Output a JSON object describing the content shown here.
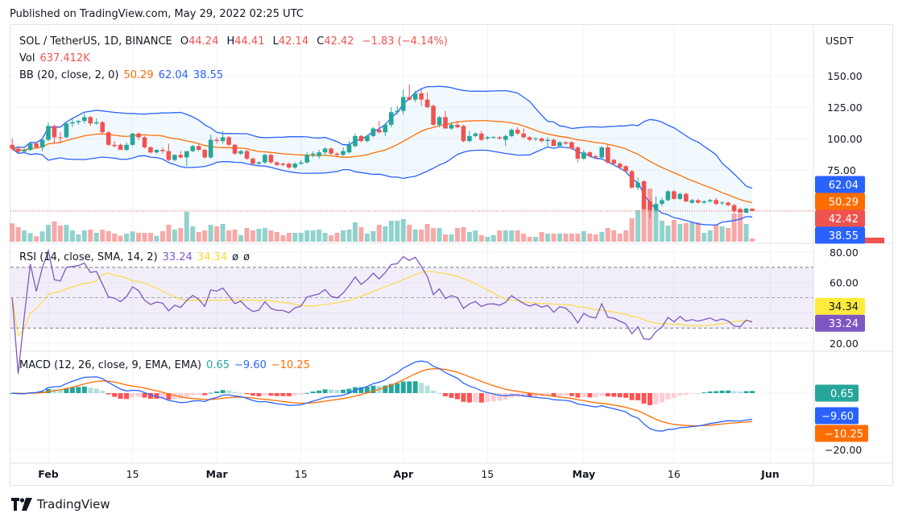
{
  "header": {
    "published": "Published on TradingView.com, May 29, 2022 02:25 UTC"
  },
  "footer": {
    "brand": "TradingView"
  },
  "legend": {
    "symbol": "SOL / TetherUS, 1D, BINANCE",
    "open_label": "O",
    "open": "44.24",
    "high_label": "H",
    "high": "44.41",
    "low_label": "L",
    "low": "42.14",
    "close_label": "C",
    "close": "42.42",
    "change": "−1.83 (−4.14%)",
    "vol_label": "Vol",
    "vol": "637.412K",
    "bb_label": "BB (20, close, 2, 0)",
    "bb_basis": "50.29",
    "bb_upper": "62.04",
    "bb_lower": "38.55",
    "rsi_label": "RSI (14, close, SMA, 14, 2)",
    "rsi": "33.24",
    "rsi_sma": "34.34",
    "rsi_na1": "ø",
    "rsi_na2": "ø",
    "macd_label": "MACD (12, 26, close, 9, EMA, EMA)",
    "macd_hist": "0.65",
    "macd": "−9.60",
    "macd_signal": "−10.25"
  },
  "colors": {
    "up": "#26a69a",
    "down": "#ef5350",
    "bb_band": "#2962ff",
    "bb_basis": "#ff6d00",
    "rsi": "#7e57c2",
    "rsi_sma": "#fdd835",
    "macd": "#2962ff",
    "signal": "#ff6d00",
    "hist_up_strong": "#26a69a",
    "hist_up_weak": "#b2dfdb",
    "hist_down_weak": "#ffcdd2",
    "hist_down_strong": "#ff5252"
  },
  "chart_data": {
    "type": "candlestick",
    "currency": "USDT",
    "first_date": "2022-01-26",
    "x_ticks": [
      {
        "label": "Feb",
        "date": "2022-02-01",
        "bold": true
      },
      {
        "label": "15",
        "date": "2022-02-15",
        "bold": false
      },
      {
        "label": "Mar",
        "date": "2022-03-01",
        "bold": true
      },
      {
        "label": "15",
        "date": "2022-03-15",
        "bold": false
      },
      {
        "label": "Apr",
        "date": "2022-04-01",
        "bold": true
      },
      {
        "label": "15",
        "date": "2022-04-15",
        "bold": false
      },
      {
        "label": "May",
        "date": "2022-05-01",
        "bold": true
      },
      {
        "label": "16",
        "date": "2022-05-16",
        "bold": false
      },
      {
        "label": "Jun",
        "date": "2022-06-01",
        "bold": true
      }
    ],
    "price_axis": {
      "ticks": [
        "150.00",
        "125.00",
        "100.00",
        "75.00"
      ],
      "tick_values": [
        150,
        125,
        100,
        75
      ]
    },
    "price_tags": [
      {
        "text": "62.04",
        "value": 62.04,
        "color": "#2962ff"
      },
      {
        "text": "50.29",
        "value": 50.29,
        "color": "#ff6d00"
      },
      {
        "text": "42.42",
        "value": 42.42,
        "color": "#ef5350"
      },
      {
        "text": "38.55",
        "value": 38.55,
        "color": "#2962ff"
      }
    ],
    "rsi_axis": {
      "ticks": [
        "80.00",
        "60.00",
        "20.00"
      ],
      "tick_values": [
        80,
        60,
        20
      ],
      "bands": [
        70,
        50,
        30
      ]
    },
    "rsi_tags": [
      {
        "text": "34.34",
        "value": 34.34,
        "color": "#ffeb3b",
        "text_color": "#131722"
      },
      {
        "text": "33.24",
        "value": 33.24,
        "color": "#7e57c2",
        "text_color": "#ffffff"
      }
    ],
    "macd_axis": {
      "ticks": [
        "−20.00"
      ],
      "tick_values": [
        -20
      ]
    },
    "macd_tags": [
      {
        "text": "0.65",
        "value": 0.65,
        "color": "#26a69a"
      },
      {
        "text": "−9.60",
        "value": -9.6,
        "color": "#2962ff"
      },
      {
        "text": "−10.25",
        "value": -10.25,
        "color": "#ff6d00"
      }
    ],
    "ohlc_columns": [
      "open",
      "high",
      "low",
      "close"
    ],
    "ohlc": [
      [
        95,
        100,
        90.5,
        92
      ],
      [
        92,
        94,
        88.5,
        89.5
      ],
      [
        89.5,
        92,
        88.5,
        91
      ],
      [
        91,
        97.5,
        90,
        96
      ],
      [
        96,
        97.5,
        92,
        93
      ],
      [
        93,
        101,
        90,
        99
      ],
      [
        99,
        113,
        98,
        110
      ],
      [
        110,
        111,
        96,
        101
      ],
      [
        101,
        105,
        96,
        100.5
      ],
      [
        101,
        113,
        100,
        112
      ],
      [
        112,
        116,
        109,
        113
      ],
      [
        113,
        115,
        111,
        114
      ],
      [
        114,
        120,
        112,
        117
      ],
      [
        117,
        118,
        110,
        112
      ],
      [
        112,
        116,
        111,
        113
      ],
      [
        113,
        114,
        104,
        105
      ],
      [
        105,
        106,
        94,
        95
      ],
      [
        95,
        98,
        93,
        94
      ],
      [
        95,
        96,
        91,
        91
      ],
      [
        91,
        97,
        90,
        95
      ],
      [
        95,
        104.5,
        94,
        104
      ],
      [
        104,
        105,
        99,
        101
      ],
      [
        101,
        102,
        92,
        93
      ],
      [
        93,
        94,
        88,
        89
      ],
      [
        89,
        91.5,
        88,
        91
      ],
      [
        91,
        93,
        88,
        90
      ],
      [
        90,
        96,
        82,
        83
      ],
      [
        83,
        87.5,
        82,
        87
      ],
      [
        87,
        90,
        84,
        85
      ],
      [
        85,
        90,
        78,
        90
      ],
      [
        90,
        95,
        89,
        94
      ],
      [
        94,
        96,
        90,
        91
      ],
      [
        91,
        92,
        84,
        85
      ],
      [
        85,
        103,
        84,
        99
      ],
      [
        99,
        101,
        96,
        98
      ],
      [
        98,
        106,
        96,
        101
      ],
      [
        101,
        102,
        94,
        95
      ],
      [
        95,
        96,
        87,
        88
      ],
      [
        88,
        91,
        87,
        90
      ],
      [
        90,
        91,
        83,
        84
      ],
      [
        84,
        85,
        79,
        80
      ],
      [
        80,
        82,
        79,
        81
      ],
      [
        81,
        88,
        80,
        87
      ],
      [
        87,
        88,
        80,
        81
      ],
      [
        81,
        82,
        78,
        79
      ],
      [
        80,
        81,
        78,
        79
      ],
      [
        80,
        81,
        76,
        77
      ],
      [
        77,
        81,
        76,
        80
      ],
      [
        80,
        83,
        79,
        81
      ],
      [
        81,
        89,
        80,
        87
      ],
      [
        87,
        90,
        85,
        88
      ],
      [
        86,
        91,
        84,
        89
      ],
      [
        89,
        93,
        87,
        92
      ],
      [
        92,
        93,
        87,
        88
      ],
      [
        88,
        89,
        86,
        87
      ],
      [
        87,
        93,
        86,
        90
      ],
      [
        89,
        98,
        88,
        95
      ],
      [
        94,
        104,
        93,
        102
      ],
      [
        102,
        103,
        97,
        98
      ],
      [
        98,
        103,
        97,
        102
      ],
      [
        102,
        109,
        101,
        108
      ],
      [
        107,
        114,
        104,
        105
      ],
      [
        105,
        112,
        102,
        111
      ],
      [
        111,
        125,
        109,
        121
      ],
      [
        121,
        126,
        119,
        122
      ],
      [
        122,
        139,
        119,
        133
      ],
      [
        133,
        143,
        130,
        131
      ],
      [
        131,
        138,
        129,
        136
      ],
      [
        136,
        139,
        126,
        131
      ],
      [
        131,
        137,
        124,
        125
      ],
      [
        126,
        127,
        110,
        111
      ],
      [
        111,
        118,
        109,
        117
      ],
      [
        117,
        122,
        108,
        108
      ],
      [
        108,
        113,
        107,
        111
      ],
      [
        111,
        114,
        108,
        109
      ],
      [
        110,
        111,
        97,
        98
      ],
      [
        98,
        106,
        97,
        102
      ],
      [
        102,
        105,
        101,
        104
      ],
      [
        104,
        106,
        98,
        99
      ],
      [
        100,
        102,
        99,
        101
      ],
      [
        101,
        102,
        100,
        101.2
      ],
      [
        101,
        102,
        99,
        100
      ],
      [
        99,
        103,
        94,
        102
      ],
      [
        102,
        108,
        101,
        107
      ],
      [
        107,
        109,
        103,
        104
      ],
      [
        104,
        108,
        100,
        101
      ],
      [
        101,
        102,
        98,
        99
      ],
      [
        100,
        101,
        98,
        100.2
      ],
      [
        100,
        101,
        97,
        98
      ],
      [
        98,
        101,
        94,
        99
      ],
      [
        99,
        100,
        94,
        94
      ],
      [
        94,
        98,
        93,
        97
      ],
      [
        97,
        98,
        95,
        96
      ],
      [
        97,
        98,
        91,
        92
      ],
      [
        93,
        94,
        81,
        84
      ],
      [
        84,
        91,
        83,
        89
      ],
      [
        89,
        90,
        85,
        86
      ],
      [
        86,
        87,
        84,
        85
      ],
      [
        85,
        94,
        84,
        93
      ],
      [
        93,
        96,
        80,
        81
      ],
      [
        83,
        84,
        79,
        80
      ],
      [
        80,
        81,
        76,
        77
      ],
      [
        78,
        79,
        73,
        74
      ],
      [
        74,
        75,
        60,
        61
      ],
      [
        61,
        69,
        59,
        65
      ],
      [
        66,
        67,
        43,
        44
      ],
      [
        50,
        52,
        37,
        43
      ],
      [
        43,
        54,
        41,
        48
      ],
      [
        48,
        53,
        46,
        51
      ],
      [
        51,
        59,
        50,
        58
      ],
      [
        58,
        59,
        51,
        52
      ],
      [
        52,
        57,
        51,
        56
      ],
      [
        56,
        57,
        49,
        50
      ],
      [
        49,
        52,
        48,
        51
      ],
      [
        51,
        52,
        48,
        49
      ],
      [
        49,
        51,
        48,
        50
      ],
      [
        50,
        52,
        49,
        51
      ],
      [
        51,
        53,
        47,
        48
      ],
      [
        49,
        50,
        47,
        49.1
      ],
      [
        49,
        50,
        46,
        47
      ],
      [
        47,
        48,
        41,
        42
      ],
      [
        44,
        45,
        41,
        41
      ],
      [
        41,
        45,
        40.5,
        44.24
      ],
      [
        44.24,
        44.41,
        42.14,
        42.42
      ]
    ],
    "volume_unit": "K",
    "volume": [
      3632,
      2880,
      2240,
      1712,
      1072,
      2032,
      3360,
      4000,
      3200,
      3360,
      2240,
      1440,
      2240,
      2400,
      1760,
      2400,
      2080,
      1600,
      1168,
      1600,
      2032,
      1760,
      1760,
      1760,
      1168,
      2080,
      3360,
      2400,
      2720,
      5920,
      3040,
      1920,
      2240,
      3360,
      3040,
      3520,
      2240,
      2400,
      1328,
      2720,
      2240,
      2560,
      2720,
      2240,
      1920,
      1280,
      1760,
      1760,
      1760,
      2240,
      2240,
      2400,
      1760,
      1280,
      1760,
      2240,
      2400,
      3840,
      2880,
      1600,
      2080,
      3360,
      3040,
      4160,
      4160,
      4480,
      3360,
      2400,
      2400,
      3520,
      2720,
      2720,
      1440,
      1440,
      2720,
      2880,
      1920,
      2240,
      1280,
      960,
      1280,
      2240,
      2240,
      2240,
      2240,
      1600,
      960,
      960,
      1920,
      1600,
      1600,
      1600,
      1600,
      1600,
      1600,
      2080,
      1600,
      1440,
      1920,
      2720,
      2240,
      1600,
      2240,
      4640,
      6240,
      8000,
      10560,
      6240,
      4160,
      3200,
      4320,
      3520,
      3680,
      3840,
      3840,
      1760,
      2240,
      3360,
      3040,
      2720,
      5600,
      5600,
      3520,
      637.412
    ],
    "indicators": {
      "bb": {
        "length": 20,
        "mult": 2
      },
      "rsi": {
        "length": 14,
        "sma_length": 14
      },
      "macd": {
        "fast": 12,
        "slow": 26,
        "signal": 9
      }
    },
    "last_price_line": 42.42,
    "grid": true
  }
}
